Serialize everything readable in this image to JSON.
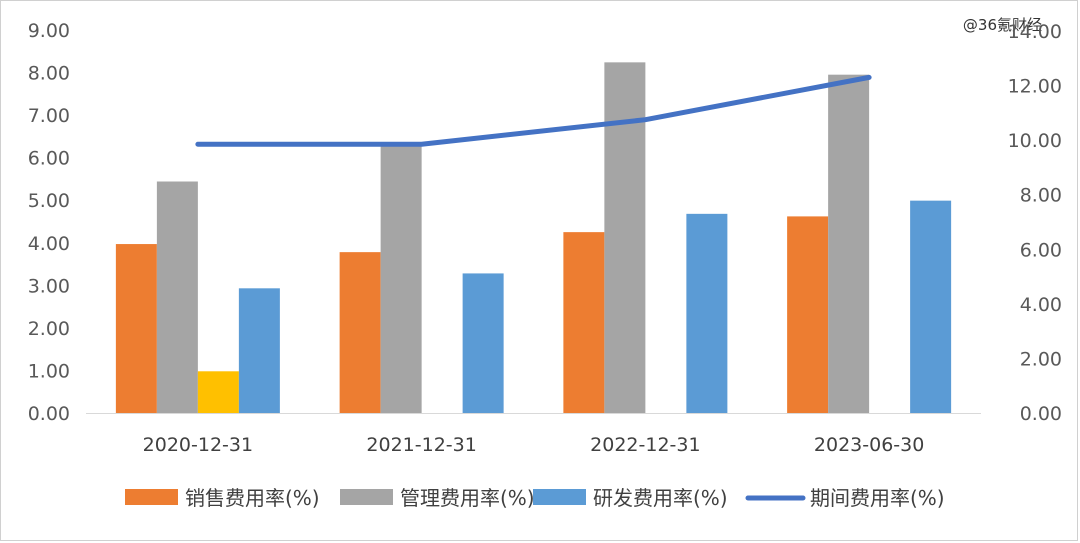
{
  "watermark": "@36氪财经",
  "chart_data": {
    "type": "bar",
    "categories": [
      "2020-12-31",
      "2021-12-31",
      "2022-12-31",
      "2023-06-30"
    ],
    "series": [
      {
        "name": "销售费用率(%)",
        "kind": "bar",
        "axis": "left",
        "color": "#ED7D31",
        "values": [
          3.97,
          3.78,
          4.25,
          4.62
        ]
      },
      {
        "name": "管理费用率(%)",
        "kind": "bar",
        "axis": "left",
        "color": "#A5A5A5",
        "values": [
          5.44,
          6.28,
          8.24,
          7.95
        ]
      },
      {
        "name": "",
        "kind": "bar",
        "axis": "left",
        "color": "#FFC000",
        "values": [
          0.98,
          null,
          null,
          null
        ]
      },
      {
        "name": "研发费用率(%)",
        "kind": "bar",
        "axis": "left",
        "color": "#5B9BD5",
        "values": [
          2.93,
          3.28,
          4.68,
          4.99
        ]
      },
      {
        "name": "期间费用率(%)",
        "kind": "line",
        "axis": "right",
        "color": "#4472C4",
        "values": [
          9.85,
          9.85,
          10.75,
          12.3
        ]
      }
    ],
    "y_left": {
      "min": 0,
      "max": 9,
      "ticks": [
        "0.00",
        "1.00",
        "2.00",
        "3.00",
        "4.00",
        "5.00",
        "6.00",
        "7.00",
        "8.00",
        "9.00"
      ]
    },
    "y_right": {
      "min": 0,
      "max": 14,
      "ticks": [
        "0.00",
        "2.00",
        "4.00",
        "6.00",
        "8.00",
        "10.00",
        "12.00",
        "14.00"
      ]
    },
    "legend": [
      "销售费用率(%)",
      "管理费用率(%)",
      "研发费用率(%)",
      "期间费用率(%)"
    ],
    "legend_position": "bottom",
    "grid": false,
    "title": "",
    "xlabel": "",
    "ylabel": ""
  }
}
